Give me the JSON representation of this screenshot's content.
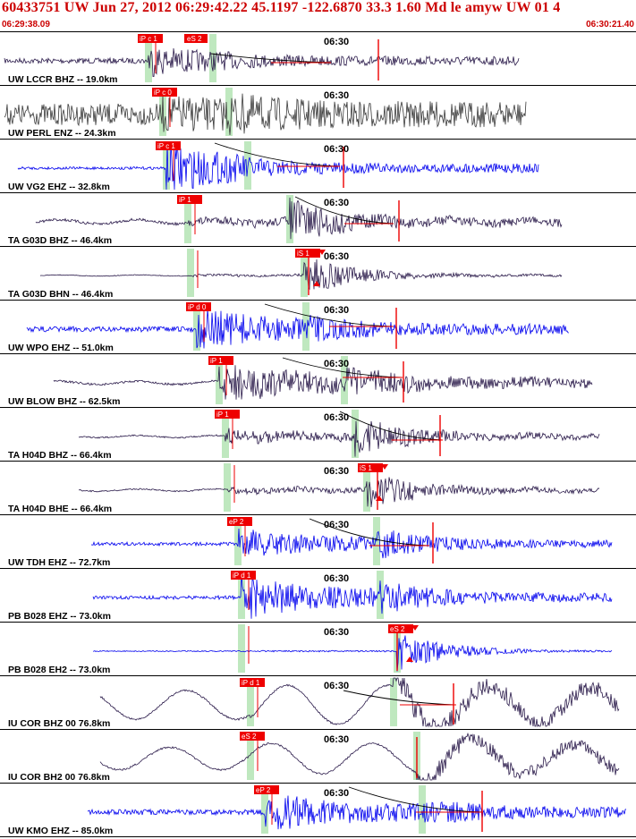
{
  "header": {
    "title": "60433751 UW Jun 27, 2012 06:29:42.22    45.1197 -122.6870 33.3 1.60 Md le amyw UW 01    4",
    "time_start": "06:29:38.09",
    "time_end": "06:30:21.40"
  },
  "minute_label": "06:30",
  "colors": {
    "title": "#cc0000",
    "trace_dark": "#2a1a4a",
    "trace_gray": "#3a3a3a",
    "trace_blue": "#0000ee",
    "pick": "#ee0000",
    "window": "#bfe8bf",
    "curve": "#000000"
  },
  "tracks": [
    {
      "label": "UW LCCR BHZ -- 19.0km",
      "pick": "iP c 1",
      "pick2": "eS 2",
      "color": "dark"
    },
    {
      "label": "UW PERL ENZ -- 24.3km",
      "pick": "iP c 0",
      "pick2": "",
      "color": "gray"
    },
    {
      "label": "UW VG2 EHZ -- 32.8km",
      "pick": "iP c 1",
      "pick2": "",
      "color": "blue"
    },
    {
      "label": "TA G03D BHZ -- 46.4km",
      "pick": "iP 1",
      "pick2": "",
      "color": "dark"
    },
    {
      "label": "TA G03D BHN -- 46.4km",
      "pick": "iS 1",
      "pick2": "",
      "color": "dark"
    },
    {
      "label": "UW WPO EHZ -- 51.0km",
      "pick": "iP d 0",
      "pick2": "",
      "color": "blue"
    },
    {
      "label": "UW BLOW BHZ -- 62.5km",
      "pick": "iP 1",
      "pick2": "",
      "color": "dark"
    },
    {
      "label": "TA H04D BHZ -- 66.4km",
      "pick": "iP 1",
      "pick2": "",
      "color": "dark"
    },
    {
      "label": "TA H04D BHE -- 66.4km",
      "pick": "iS 1",
      "pick2": "",
      "color": "dark"
    },
    {
      "label": "UW TDH EHZ -- 72.7km",
      "pick": "eP 2",
      "pick2": "",
      "color": "blue"
    },
    {
      "label": "PB B028 EHZ -- 73.0km",
      "pick": "iP d 1",
      "pick2": "",
      "color": "blue"
    },
    {
      "label": "PB B028 EH2 -- 73.0km",
      "pick": "eS 2",
      "pick2": "",
      "color": "blue"
    },
    {
      "label": "IU COR BHZ 00 76.8km",
      "pick": "iP d 1",
      "pick2": "",
      "color": "dark"
    },
    {
      "label": "IU COR BH2 00 76.8km",
      "pick": "eS 2",
      "pick2": "",
      "color": "dark"
    },
    {
      "label": "UW KMO EHZ -- 85.0km",
      "pick": "eP 2",
      "pick2": "",
      "color": "blue"
    }
  ]
}
